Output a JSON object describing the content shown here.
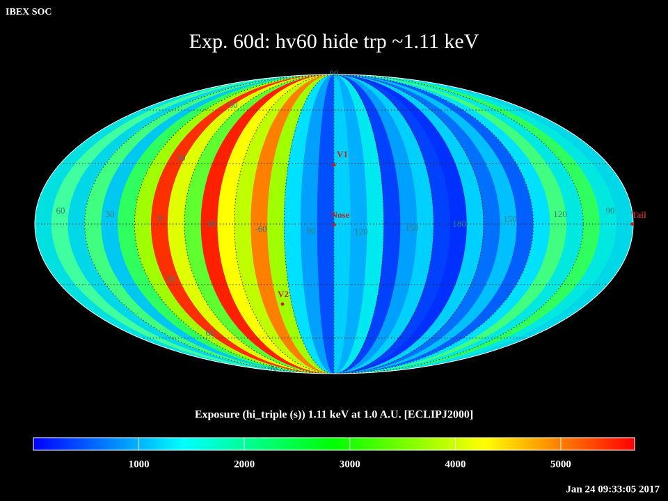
{
  "header": {
    "corner": "IBEX SOC",
    "title": "Exp.   60d: hv60 hide trp ~1.11 keV"
  },
  "map": {
    "projection": "mollweide",
    "band_colors": [
      "#00e0e0",
      "#40ffa0",
      "#00d8e8",
      "#40ff80",
      "#00c8f0",
      "#30ff60",
      "#a0ff00",
      "#ff3000",
      "#e0ff00",
      "#60ff30",
      "#ff2000",
      "#ffff00",
      "#c0ff00",
      "#ff8000",
      "#a0ff00",
      "#00e0ff",
      "#00a0ff",
      "#0050ff",
      "#00d0ff",
      "#00b0ff",
      "#00e8f0",
      "#0040ff",
      "#00a0ff",
      "#00d0ff",
      "#0040ff",
      "#0030ff",
      "#00d0ff",
      "#0070ff",
      "#00c0ff",
      "#0060ff",
      "#00e0ff",
      "#40ff80",
      "#00e8e0",
      "#30ff60",
      "#00e8e0",
      "#00d8e8"
    ],
    "grid_labels": [
      "90",
      "60",
      "30",
      "30",
      "60",
      "90",
      "60",
      "30",
      "0",
      "30",
      "-60",
      "90",
      "120",
      "150",
      "180",
      "150",
      "120",
      "90"
    ],
    "markers": [
      "V1",
      "Nose",
      "V2",
      "Tail"
    ]
  },
  "colorbar": {
    "label": "Exposure (hi_triple (s))  1.11 keV at 1.0 A.U. [ECLIPJ2000]",
    "colors": [
      "#0000ff",
      "#00ffff",
      "#00ff00",
      "#ffff00",
      "#ff0000"
    ],
    "clim": [
      0,
      5700
    ],
    "ticks": [
      1000,
      2000,
      3000,
      4000,
      5000
    ]
  },
  "footer": {
    "timestamp": "Jan 24 09:33:05 2017"
  }
}
